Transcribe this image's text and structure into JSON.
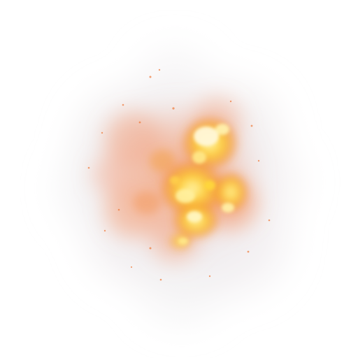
{
  "image": {
    "subject": "explosion-burst",
    "colors": {
      "background": "#ffffff",
      "smoke": "#e9e6e8",
      "smoke_warm": "#f2b9a0",
      "ember_orange": "#f07a3a",
      "flame_orange": "#f59b2c",
      "flame_yellow": "#ffd93a",
      "flame_core": "#fff6c0"
    }
  }
}
